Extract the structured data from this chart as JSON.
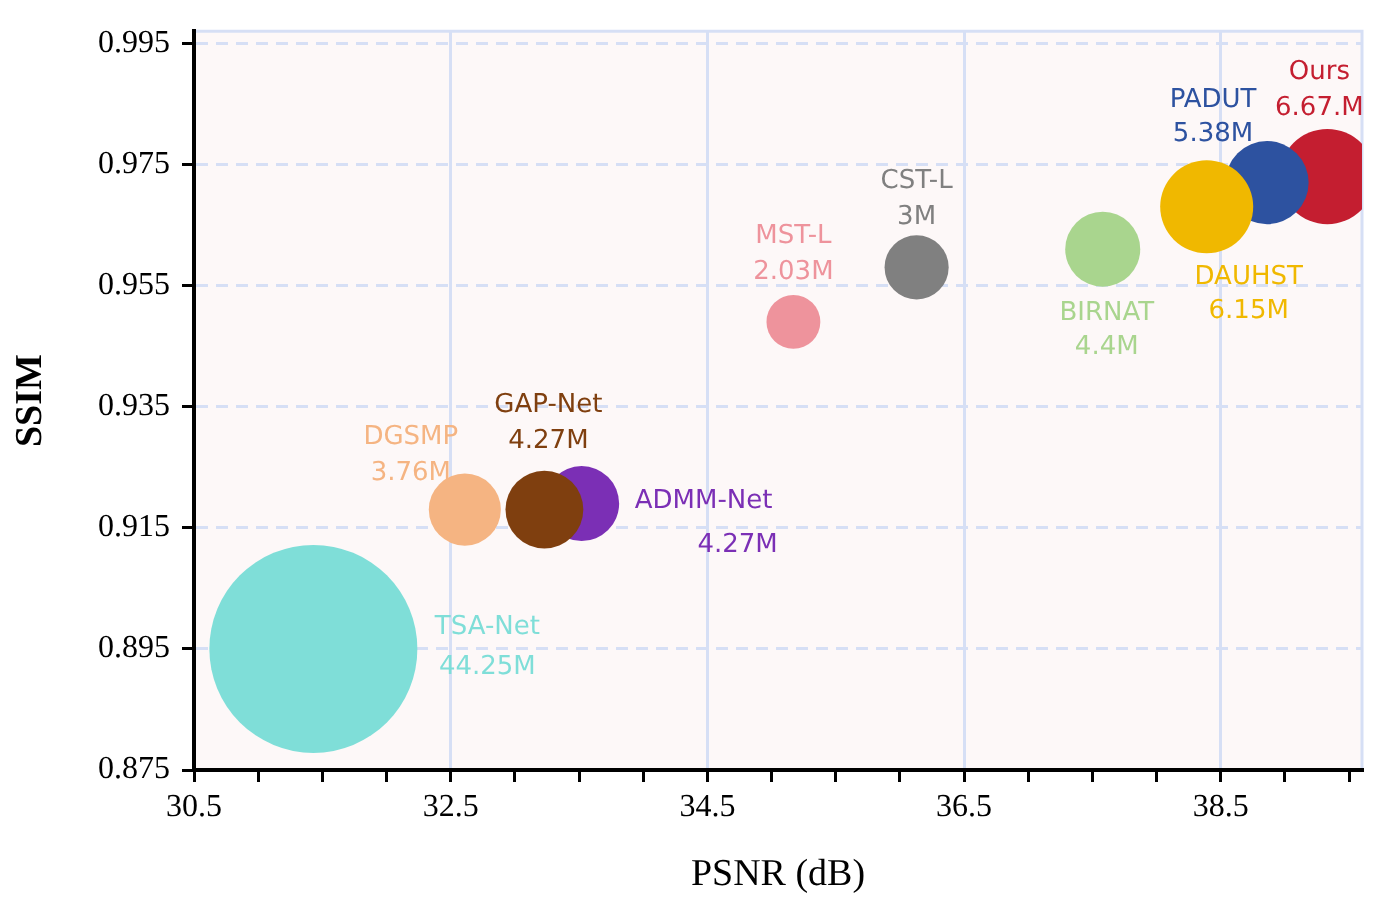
{
  "chart_data": {
    "type": "bubble",
    "xlabel": "PSNR (dB)",
    "ylabel": "SSIM",
    "xlim": [
      30.5,
      39.6
    ],
    "ylim": [
      0.875,
      0.997
    ],
    "xticks": [
      30.5,
      {
        "value": 31,
        "label": null
      },
      {
        "value": 31.5,
        "label": null
      },
      {
        "value": 32,
        "label": null
      },
      32.5,
      {
        "value": 33,
        "label": null
      },
      {
        "value": 33.5,
        "label": null
      },
      {
        "value": 34,
        "label": null
      },
      34.5,
      {
        "value": 35,
        "label": null
      },
      {
        "value": 35.5,
        "label": null
      },
      {
        "value": 36,
        "label": null
      },
      36.5,
      {
        "value": 37,
        "label": null
      },
      {
        "value": 37.5,
        "label": null
      },
      {
        "value": 38,
        "label": null
      },
      38.5,
      {
        "value": 39,
        "label": null
      },
      {
        "value": 39.5,
        "label": null
      }
    ],
    "yticks": [
      0.875,
      0.895,
      0.915,
      0.935,
      0.955,
      0.975,
      0.995
    ],
    "grid": true,
    "legend": false,
    "annotations": [
      "44.25M",
      "3.76M",
      "4.27M",
      "4.27M",
      "2.03M",
      "3M",
      "4.4M",
      "6.15M",
      "5.38M",
      "6.67.M"
    ],
    "series": [
      {
        "name": "TSA-Net",
        "color": "#7fded8",
        "x": [
          31.43
        ],
        "values": [
          0.895
        ],
        "sizes": [
          1
        ]
      },
      {
        "name": "DGSMP",
        "color": "#f5b482",
        "x": [
          32.61
        ],
        "values": [
          0.918
        ],
        "sizes": [
          0.12
        ]
      },
      {
        "name": "GAP-Net",
        "color": "#7f3f0f",
        "x": [
          33.23
        ],
        "values": [
          0.918
        ],
        "sizes": [
          0.14
        ]
      },
      {
        "name": "ADMM-Net",
        "color": "#7b2fb5",
        "x": [
          33.52
        ],
        "values": [
          0.919
        ],
        "sizes": [
          0.13
        ]
      },
      {
        "name": "MST-L",
        "color": "#ee939c",
        "x": [
          35.17
        ],
        "values": [
          0.949
        ],
        "sizes": [
          0.067
        ]
      },
      {
        "name": "CST-L",
        "color": "#808080",
        "x": [
          36.13
        ],
        "values": [
          0.958
        ],
        "sizes": [
          0.095
        ]
      },
      {
        "name": "BIRNAT",
        "color": "#a9d58e",
        "x": [
          37.58
        ],
        "values": [
          0.961
        ],
        "sizes": [
          0.13
        ]
      },
      {
        "name": "DAUHST",
        "color": "#f0b800",
        "x": [
          38.39
        ],
        "values": [
          0.968
        ],
        "sizes": [
          0.2
        ]
      },
      {
        "name": "PADUT",
        "color": "#2d52a0",
        "x": [
          38.86
        ],
        "values": [
          0.972
        ],
        "sizes": [
          0.16
        ]
      },
      {
        "name": "Ours",
        "color": "#c41e30",
        "x": [
          39.33
        ],
        "values": [
          0.973
        ],
        "sizes": [
          0.21
        ]
      }
    ]
  }
}
